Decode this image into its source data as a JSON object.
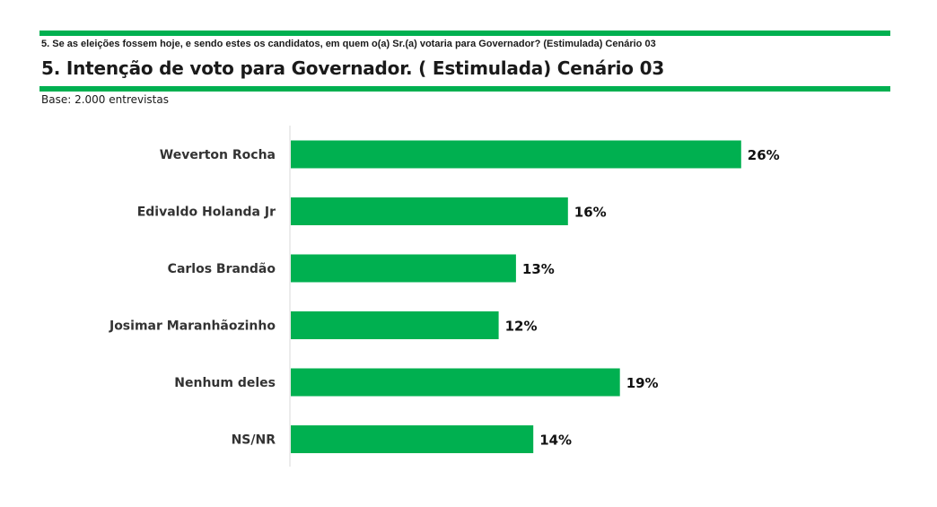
{
  "header": {
    "question": "5. Se as eleições fossem hoje, e sendo estes os candidatos, em quem o(a) Sr.(a) votaria para Governador? (Estimulada) Cenário 03",
    "title": "5. Intenção de voto para Governador. ( Estimulada) Cenário 03",
    "base": "Base: 2.000 entrevistas"
  },
  "colors": {
    "accent": "#00b050",
    "bar": "#00b050",
    "axis": "#d9d9d9"
  },
  "chart_data": {
    "type": "bar",
    "orientation": "horizontal",
    "categories": [
      "Weverton Rocha",
      "Edivaldo Holanda Jr",
      "Carlos Brandão",
      "Josimar Maranhãozinho",
      "Nenhum deles",
      "NS/NR"
    ],
    "values": [
      26,
      16,
      13,
      12,
      19,
      14
    ],
    "value_labels": [
      "26%",
      "16%",
      "13%",
      "12%",
      "19%",
      "14%"
    ],
    "unit": "%",
    "xlim": [
      0,
      30
    ],
    "grid": false,
    "legend": "none"
  }
}
